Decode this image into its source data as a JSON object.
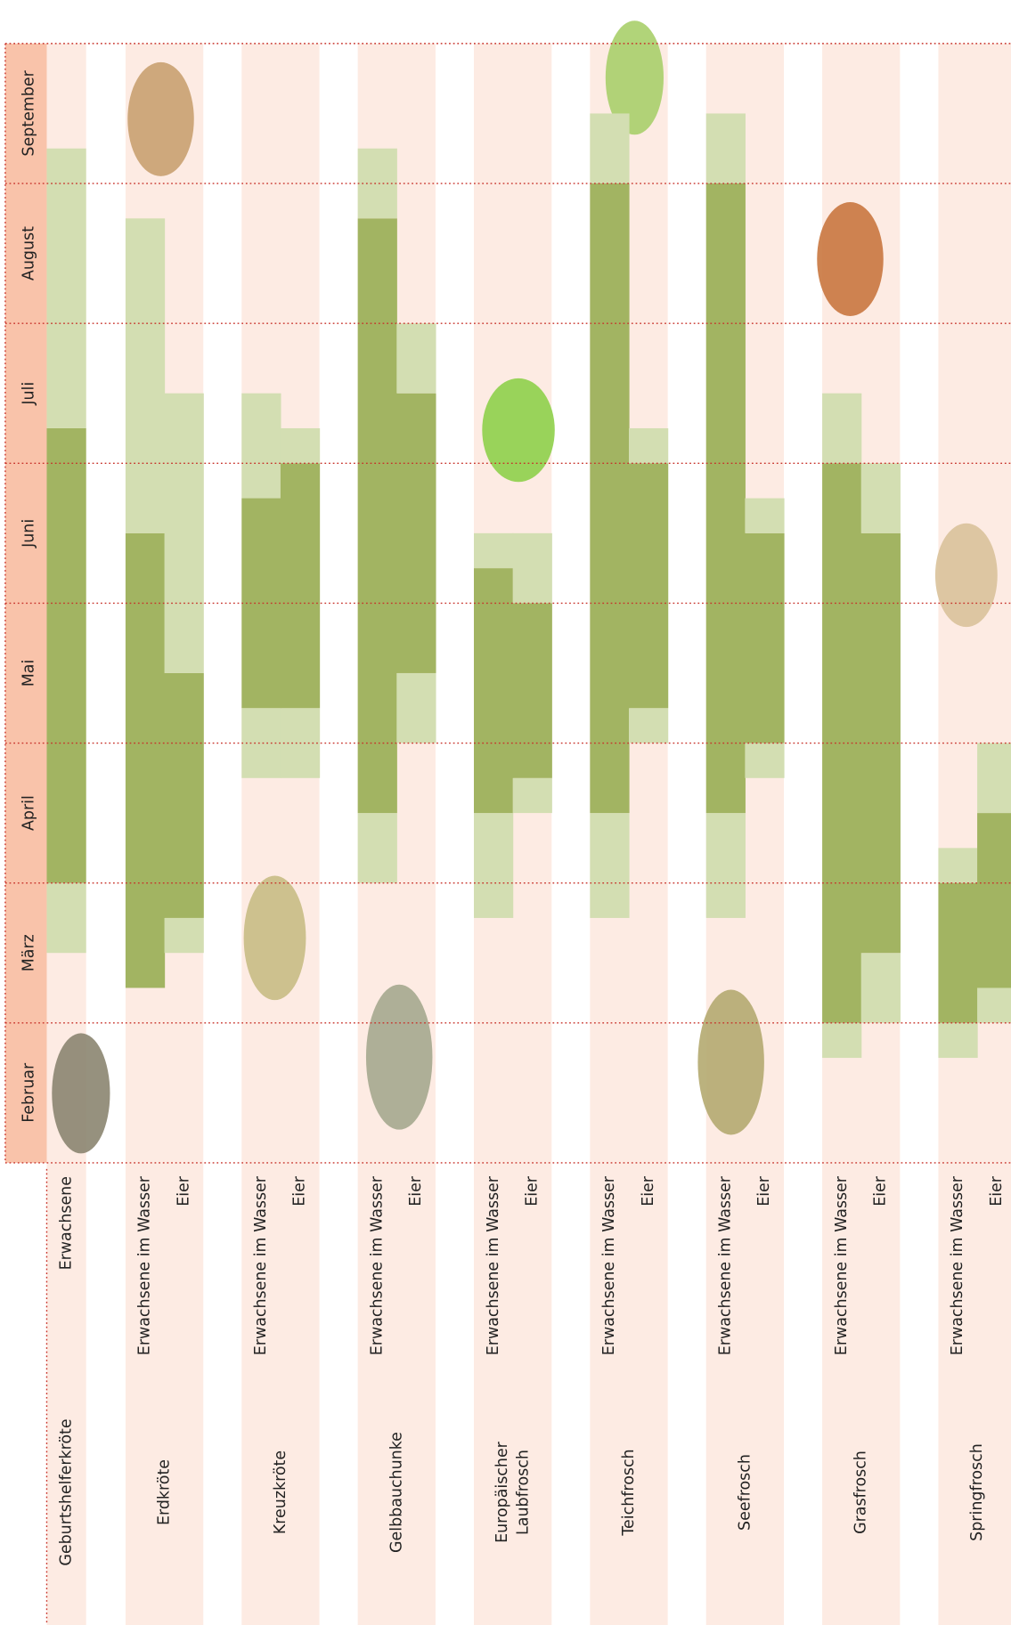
{
  "chart_data": {
    "type": "timeline",
    "ylim": [
      0,
      8
    ],
    "yticks": [
      {
        "value": 0.5,
        "label": "Februar"
      },
      {
        "value": 1.5,
        "label": "März"
      },
      {
        "value": 2.5,
        "label": "April"
      },
      {
        "value": 3.5,
        "label": "Mai"
      },
      {
        "value": 4.5,
        "label": "Juni"
      },
      {
        "value": 5.5,
        "label": "Juli"
      },
      {
        "value": 6.5,
        "label": "August"
      },
      {
        "value": 7.5,
        "label": "September"
      }
    ],
    "species": [
      {
        "name": [
          "Geburtshelferkröte"
        ],
        "rows": [
          {
            "label": "Erwachsene",
            "segments": [
              {
                "from": 1.5,
                "to": 2,
                "color": "#d3deb2"
              },
              {
                "from": 2,
                "to": 5.25,
                "color": "#a2b462"
              },
              {
                "from": 5.25,
                "to": 7.25,
                "color": "#d3deb2"
              }
            ]
          }
        ]
      },
      {
        "name": [
          "Erdkröte"
        ],
        "rows": [
          {
            "label": "Erwachsene im Wasser",
            "segments": [
              {
                "from": 1.25,
                "to": 4.5,
                "color": "#a2b462"
              },
              {
                "from": 4.5,
                "to": 6.75,
                "color": "#d3deb2"
              }
            ]
          },
          {
            "label": "Eier",
            "segments": [
              {
                "from": 1.5,
                "to": 1.75,
                "color": "#d3deb2"
              },
              {
                "from": 1.75,
                "to": 3.5,
                "color": "#a2b462"
              },
              {
                "from": 3.5,
                "to": 5.5,
                "color": "#d3deb2"
              }
            ]
          }
        ]
      },
      {
        "name": [
          "Kreuzkröte"
        ],
        "rows": [
          {
            "label": "Erwachsene im Wasser",
            "segments": [
              {
                "from": 2.75,
                "to": 3.25,
                "color": "#d3deb2"
              },
              {
                "from": 3.25,
                "to": 4.75,
                "color": "#a2b462"
              },
              {
                "from": 4.75,
                "to": 5.5,
                "color": "#d3deb2"
              }
            ]
          },
          {
            "label": "Eier",
            "segments": [
              {
                "from": 2.75,
                "to": 3.25,
                "color": "#d3deb2"
              },
              {
                "from": 3.25,
                "to": 5,
                "color": "#a2b462"
              },
              {
                "from": 5,
                "to": 5.25,
                "color": "#d3deb2"
              }
            ]
          }
        ]
      },
      {
        "name": [
          "Gelbbauchunke"
        ],
        "rows": [
          {
            "label": "Erwachsene im Wasser",
            "segments": [
              {
                "from": 2,
                "to": 2.5,
                "color": "#d3deb2"
              },
              {
                "from": 2.5,
                "to": 6.75,
                "color": "#a2b462"
              },
              {
                "from": 6.75,
                "to": 7.25,
                "color": "#d3deb2"
              }
            ]
          },
          {
            "label": "Eier",
            "segments": [
              {
                "from": 3,
                "to": 3.5,
                "color": "#d3deb2"
              },
              {
                "from": 3.5,
                "to": 5.5,
                "color": "#a2b462"
              },
              {
                "from": 5.5,
                "to": 6,
                "color": "#d3deb2"
              }
            ]
          }
        ]
      },
      {
        "name": [
          "Europäischer",
          "Laubfrosch"
        ],
        "rows": [
          {
            "label": "Erwachsene im Wasser",
            "segments": [
              {
                "from": 1.75,
                "to": 2.5,
                "color": "#d3deb2"
              },
              {
                "from": 2.5,
                "to": 4.25,
                "color": "#a2b462"
              },
              {
                "from": 4.25,
                "to": 4.5,
                "color": "#d3deb2"
              }
            ]
          },
          {
            "label": "Eier",
            "segments": [
              {
                "from": 2.5,
                "to": 2.75,
                "color": "#d3deb2"
              },
              {
                "from": 2.75,
                "to": 4,
                "color": "#a2b462"
              },
              {
                "from": 4,
                "to": 4.5,
                "color": "#d3deb2"
              }
            ]
          }
        ]
      },
      {
        "name": [
          "Teichfrosch"
        ],
        "rows": [
          {
            "label": "Erwachsene im Wasser",
            "segments": [
              {
                "from": 1.75,
                "to": 2.5,
                "color": "#d3deb2"
              },
              {
                "from": 2.5,
                "to": 7,
                "color": "#a2b462"
              },
              {
                "from": 7,
                "to": 7.5,
                "color": "#d3deb2"
              }
            ]
          },
          {
            "label": "Eier",
            "segments": [
              {
                "from": 3,
                "to": 3.25,
                "color": "#d3deb2"
              },
              {
                "from": 3.25,
                "to": 5,
                "color": "#a2b462"
              },
              {
                "from": 5,
                "to": 5.25,
                "color": "#d3deb2"
              }
            ]
          }
        ]
      },
      {
        "name": [
          "Seefrosch"
        ],
        "rows": [
          {
            "label": "Erwachsene im Wasser",
            "segments": [
              {
                "from": 1.75,
                "to": 2.5,
                "color": "#d3deb2"
              },
              {
                "from": 2.5,
                "to": 7,
                "color": "#a2b462"
              },
              {
                "from": 7,
                "to": 7.5,
                "color": "#d3deb2"
              }
            ]
          },
          {
            "label": "Eier",
            "segments": [
              {
                "from": 2.75,
                "to": 3,
                "color": "#d3deb2"
              },
              {
                "from": 3,
                "to": 4.5,
                "color": "#a2b462"
              },
              {
                "from": 4.5,
                "to": 4.75,
                "color": "#d3deb2"
              }
            ]
          }
        ]
      },
      {
        "name": [
          "Grasfrosch"
        ],
        "rows": [
          {
            "label": "Erwachsene im Wasser",
            "segments": [
              {
                "from": 0.75,
                "to": 1,
                "color": "#d3deb2"
              },
              {
                "from": 1,
                "to": 5,
                "color": "#a2b462"
              },
              {
                "from": 5,
                "to": 5.5,
                "color": "#d3deb2"
              }
            ]
          },
          {
            "label": "Eier",
            "segments": [
              {
                "from": 1,
                "to": 1.5,
                "color": "#d3deb2"
              },
              {
                "from": 1.5,
                "to": 4.5,
                "color": "#a2b462"
              },
              {
                "from": 4.5,
                "to": 5,
                "color": "#d3deb2"
              }
            ]
          }
        ]
      },
      {
        "name": [
          "Springfrosch"
        ],
        "rows": [
          {
            "label": "Erwachsene im Wasser",
            "segments": [
              {
                "from": 0.75,
                "to": 1,
                "color": "#d3deb2"
              },
              {
                "from": 1,
                "to": 2,
                "color": "#a2b462"
              },
              {
                "from": 2,
                "to": 2.25,
                "color": "#d3deb2"
              }
            ]
          },
          {
            "label": "Eier",
            "segments": [
              {
                "from": 1,
                "to": 1.25,
                "color": "#d3deb2"
              },
              {
                "from": 1.25,
                "to": 2.5,
                "color": "#a2b462"
              },
              {
                "from": 2.5,
                "to": 3,
                "color": "#d3deb2"
              }
            ]
          }
        ]
      }
    ]
  }
}
